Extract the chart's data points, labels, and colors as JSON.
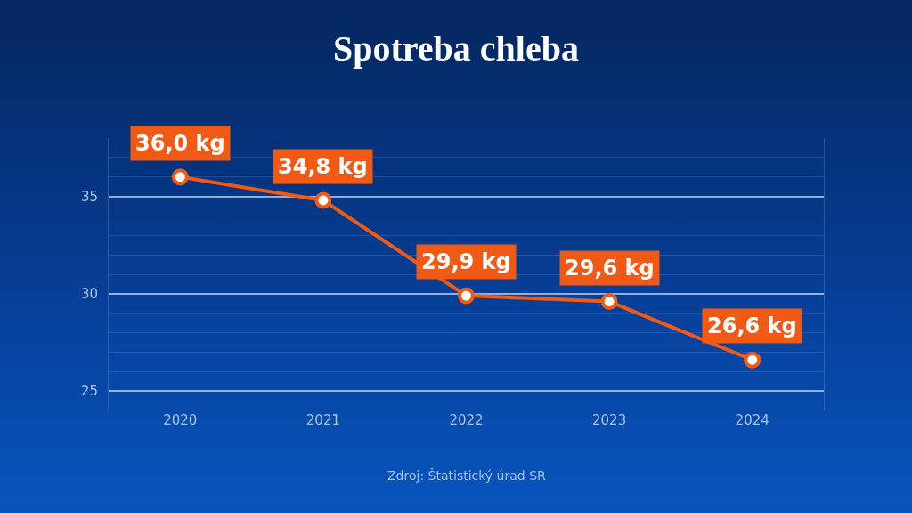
{
  "chart_data": {
    "type": "line",
    "title": "Spotreba chleba",
    "categories": [
      "2020",
      "2021",
      "2022",
      "2023",
      "2024"
    ],
    "series": [
      {
        "color": "#f05a14",
        "values": [
          36.0,
          34.8,
          29.9,
          29.6,
          26.6
        ],
        "value_labels": [
          "36,0 kg",
          "34,8 kg",
          "29,9 kg",
          "29,6 kg",
          "26,6 kg"
        ]
      }
    ],
    "ylim": [
      24,
      38
    ],
    "yticks": [
      25,
      30,
      35
    ],
    "grid": "y",
    "legend": false,
    "marker": "circle",
    "line_style": "solid",
    "annotations": [
      "Zdroj: Štatistický úrad SR"
    ]
  }
}
